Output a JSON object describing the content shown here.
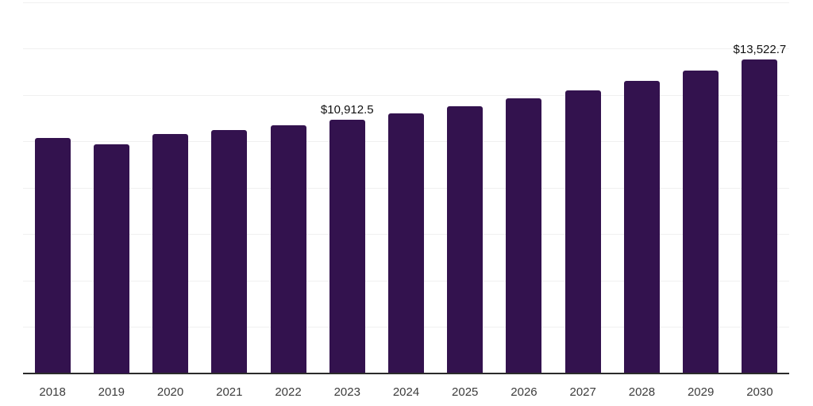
{
  "chart_data": {
    "type": "bar",
    "title": "",
    "xlabel": "",
    "ylabel": "",
    "categories": [
      "2018",
      "2019",
      "2020",
      "2021",
      "2022",
      "2023",
      "2024",
      "2025",
      "2026",
      "2027",
      "2028",
      "2029",
      "2030"
    ],
    "values": [
      10130,
      9875,
      10320,
      10490,
      10695,
      10912.5,
      11190,
      11510,
      11855,
      12195,
      12585,
      13045,
      13522.7
    ],
    "data_labels": [
      "",
      "",
      "",
      "",
      "",
      "$10,912.5",
      "",
      "",
      "",
      "",
      "",
      "",
      "$13,522.7"
    ],
    "ylim": [
      0,
      16000
    ],
    "grid_step": 2000,
    "grid": true,
    "legend": false,
    "colors": {
      "bar_fill": "#33124E",
      "grid_line": "#f0f0f0",
      "axis_line": "#2b2b2b",
      "data_label_text": "#111111",
      "tick_label_text": "#3c3c3c",
      "background": "#ffffff"
    }
  }
}
